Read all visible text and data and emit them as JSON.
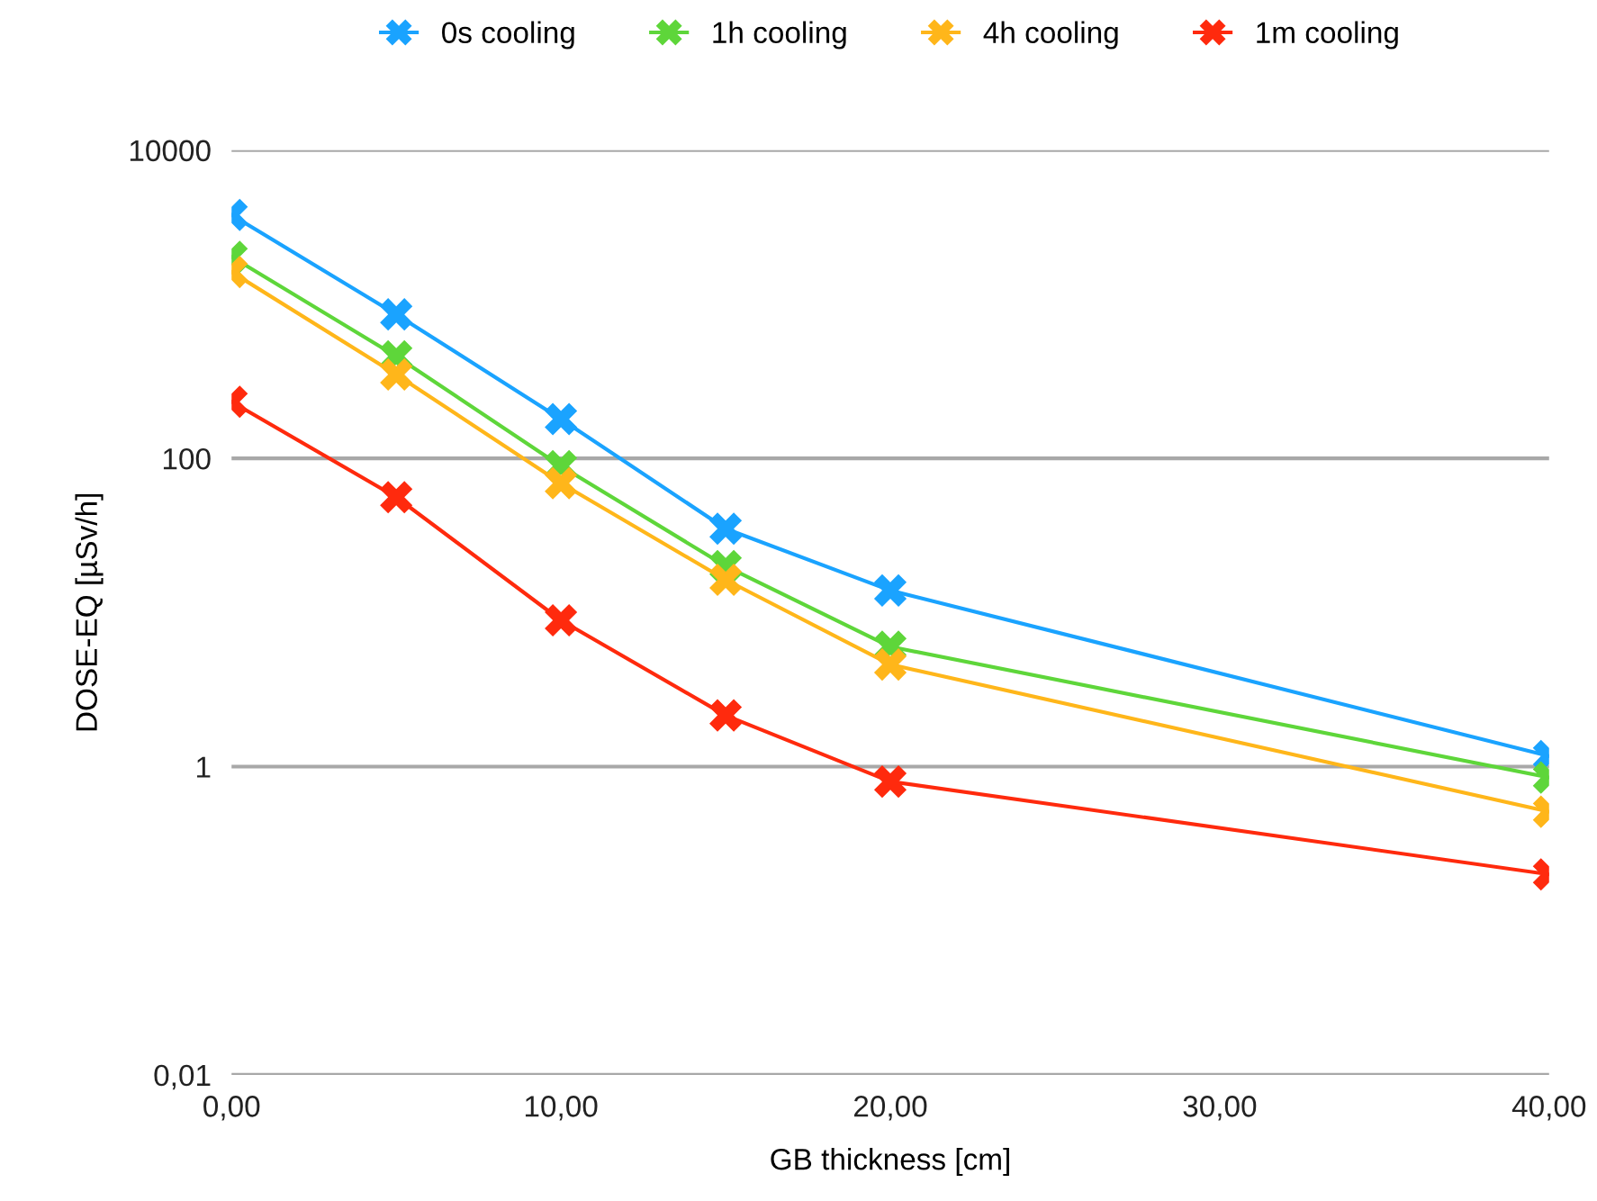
{
  "chart_data": {
    "type": "line",
    "xlabel": "GB thickness [cm]",
    "ylabel": "DOSE-EQ [µSv/h]",
    "x": [
      0,
      5,
      10,
      15,
      20,
      40
    ],
    "series": [
      {
        "name": "0s cooling",
        "color": "#1aa3ff",
        "values": [
          3800,
          860,
          180,
          35,
          13.9,
          1.17
        ]
      },
      {
        "name": "1h cooling",
        "color": "#5ed63a",
        "values": [
          2030,
          460,
          89,
          20,
          6.0,
          0.85
        ]
      },
      {
        "name": "4h cooling",
        "color": "#ffb61a",
        "values": [
          1620,
          350,
          69,
          16.3,
          4.6,
          0.51
        ]
      },
      {
        "name": "1m cooling",
        "color": "#ff2a0d",
        "values": [
          233,
          56,
          8.9,
          2.15,
          0.8,
          0.2
        ]
      }
    ],
    "log": "y",
    "xlim": [
      0,
      40
    ],
    "ylim": [
      0.01,
      10000
    ],
    "xticks": [
      {
        "value": 0,
        "label": "0,00"
      },
      {
        "value": 10,
        "label": "10,00"
      },
      {
        "value": 20,
        "label": "20,00"
      },
      {
        "value": 30,
        "label": "30,00"
      },
      {
        "value": 40,
        "label": "40,00"
      }
    ],
    "yticks": [
      {
        "value": 0.01,
        "label": "0,01"
      },
      1,
      100,
      10000
    ],
    "grid": "y",
    "legend": "top",
    "marker": "cross",
    "line_style": "solid"
  }
}
